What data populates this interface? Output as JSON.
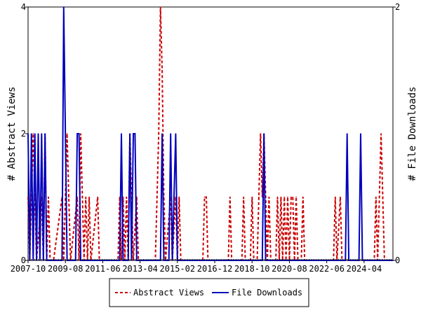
{
  "chart_data": {
    "type": "line",
    "ylabel_left": "# Abstract Views",
    "ylabel_right": "# File Downloads",
    "x_ticks": [
      "2007-10",
      "2009-08",
      "2011-06",
      "2013-04",
      "2015-02",
      "2016-12",
      "2018-10",
      "2020-08",
      "2022-06",
      "2024-04"
    ],
    "x_range": [
      "2007-10",
      "2025-09"
    ],
    "ylim_left": [
      0,
      4
    ],
    "yticks_left": [
      0,
      2,
      4
    ],
    "ylim_right": [
      0,
      2
    ],
    "yticks_right": [
      0,
      2
    ],
    "legend_position": "bottom-center",
    "series": [
      {
        "name": "Abstract Views",
        "axis": "left",
        "style": "dashed",
        "color": "#cc0000",
        "points": [
          [
            "2007-10",
            1
          ],
          [
            "2007-11",
            0
          ],
          [
            "2007-12",
            1
          ],
          [
            "2008-01",
            2
          ],
          [
            "2008-02",
            1
          ],
          [
            "2008-03",
            0
          ],
          [
            "2008-06",
            1
          ],
          [
            "2008-07",
            0
          ],
          [
            "2008-08",
            2
          ],
          [
            "2008-09",
            0
          ],
          [
            "2008-10",
            1
          ],
          [
            "2008-11",
            0
          ],
          [
            "2009-01",
            0
          ],
          [
            "2009-06",
            1
          ],
          [
            "2009-07",
            0
          ],
          [
            "2009-09",
            2
          ],
          [
            "2009-10",
            1
          ],
          [
            "2009-11",
            0
          ],
          [
            "2010-03",
            1
          ],
          [
            "2010-04",
            0
          ],
          [
            "2010-05",
            2
          ],
          [
            "2010-06",
            1
          ],
          [
            "2010-07",
            0
          ],
          [
            "2010-08",
            1
          ],
          [
            "2010-09",
            0
          ],
          [
            "2010-10",
            1
          ],
          [
            "2010-11",
            0
          ],
          [
            "2011-03",
            1
          ],
          [
            "2011-04",
            0
          ],
          [
            "2011-07",
            0
          ],
          [
            "2012-03",
            0
          ],
          [
            "2012-04",
            1
          ],
          [
            "2012-05",
            0
          ],
          [
            "2012-06",
            1
          ],
          [
            "2012-07",
            0
          ],
          [
            "2012-08",
            1
          ],
          [
            "2012-09",
            0
          ],
          [
            "2012-10",
            2
          ],
          [
            "2012-11",
            1
          ],
          [
            "2012-12",
            0
          ],
          [
            "2013-02",
            1
          ],
          [
            "2013-03",
            0
          ],
          [
            "2014-01",
            0
          ],
          [
            "2014-02",
            1
          ],
          [
            "2014-03",
            2
          ],
          [
            "2014-04",
            4
          ],
          [
            "2014-05",
            3
          ],
          [
            "2014-06",
            1
          ],
          [
            "2014-07",
            0
          ],
          [
            "2014-10",
            1
          ],
          [
            "2014-11",
            0
          ],
          [
            "2015-01",
            1
          ],
          [
            "2015-02",
            0
          ],
          [
            "2015-03",
            1
          ],
          [
            "2015-04",
            0
          ],
          [
            "2016-05",
            0
          ],
          [
            "2016-06",
            1
          ],
          [
            "2016-07",
            1
          ],
          [
            "2016-08",
            0
          ],
          [
            "2017-08",
            0
          ],
          [
            "2017-09",
            1
          ],
          [
            "2017-10",
            0
          ],
          [
            "2018-04",
            0
          ],
          [
            "2018-05",
            1
          ],
          [
            "2018-06",
            0
          ],
          [
            "2018-09",
            0
          ],
          [
            "2018-10",
            1
          ],
          [
            "2018-11",
            0
          ],
          [
            "2019-01",
            0
          ],
          [
            "2019-02",
            1
          ],
          [
            "2019-03",
            2
          ],
          [
            "2019-04",
            1
          ],
          [
            "2019-05",
            2
          ],
          [
            "2019-06",
            1
          ],
          [
            "2019-07",
            0
          ],
          [
            "2019-08",
            1
          ],
          [
            "2019-09",
            0
          ],
          [
            "2019-12",
            0
          ],
          [
            "2020-01",
            1
          ],
          [
            "2020-02",
            0
          ],
          [
            "2020-03",
            1
          ],
          [
            "2020-04",
            0
          ],
          [
            "2020-05",
            1
          ],
          [
            "2020-06",
            0
          ],
          [
            "2020-07",
            1
          ],
          [
            "2020-08",
            0
          ],
          [
            "2020-09",
            1
          ],
          [
            "2020-10",
            1
          ],
          [
            "2020-11",
            0
          ],
          [
            "2020-12",
            1
          ],
          [
            "2021-01",
            0
          ],
          [
            "2021-03",
            0
          ],
          [
            "2021-04",
            1
          ],
          [
            "2021-05",
            0
          ],
          [
            "2022-10",
            0
          ],
          [
            "2022-11",
            1
          ],
          [
            "2022-12",
            0
          ],
          [
            "2023-02",
            1
          ],
          [
            "2023-03",
            0
          ],
          [
            "2024-10",
            0
          ],
          [
            "2024-11",
            1
          ],
          [
            "2024-12",
            0
          ],
          [
            "2025-01",
            1
          ],
          [
            "2025-02",
            2
          ],
          [
            "2025-03",
            1
          ],
          [
            "2025-04",
            0
          ],
          [
            "2025-09",
            0
          ]
        ]
      },
      {
        "name": "File Downloads",
        "axis": "right",
        "style": "solid",
        "color": "#0000bb",
        "points": [
          [
            "2007-10",
            1
          ],
          [
            "2007-11",
            0
          ],
          [
            "2007-12",
            1
          ],
          [
            "2008-01",
            0
          ],
          [
            "2008-02",
            1
          ],
          [
            "2008-03",
            0
          ],
          [
            "2008-04",
            1
          ],
          [
            "2008-05",
            0
          ],
          [
            "2008-06",
            1
          ],
          [
            "2008-07",
            0
          ],
          [
            "2008-08",
            1
          ],
          [
            "2008-09",
            0
          ],
          [
            "2009-06",
            0
          ],
          [
            "2009-07",
            2
          ],
          [
            "2009-08",
            1
          ],
          [
            "2009-09",
            0
          ],
          [
            "2010-02",
            0
          ],
          [
            "2010-03",
            1
          ],
          [
            "2010-04",
            1
          ],
          [
            "2010-05",
            0
          ],
          [
            "2012-04",
            0
          ],
          [
            "2012-05",
            1
          ],
          [
            "2012-06",
            0
          ],
          [
            "2012-09",
            0
          ],
          [
            "2012-10",
            1
          ],
          [
            "2012-11",
            0
          ],
          [
            "2012-12",
            1
          ],
          [
            "2013-01",
            1
          ],
          [
            "2013-02",
            0
          ],
          [
            "2014-04",
            0
          ],
          [
            "2014-05",
            1
          ],
          [
            "2014-06",
            0
          ],
          [
            "2014-09",
            0
          ],
          [
            "2014-10",
            1
          ],
          [
            "2014-11",
            0
          ],
          [
            "2015-01",
            1
          ],
          [
            "2015-02",
            0
          ],
          [
            "2019-04",
            0
          ],
          [
            "2019-05",
            1
          ],
          [
            "2019-06",
            0
          ],
          [
            "2023-05",
            0
          ],
          [
            "2023-06",
            1
          ],
          [
            "2023-07",
            0
          ],
          [
            "2024-01",
            0
          ],
          [
            "2024-02",
            1
          ],
          [
            "2024-03",
            0
          ],
          [
            "2025-09",
            0
          ]
        ]
      }
    ]
  }
}
